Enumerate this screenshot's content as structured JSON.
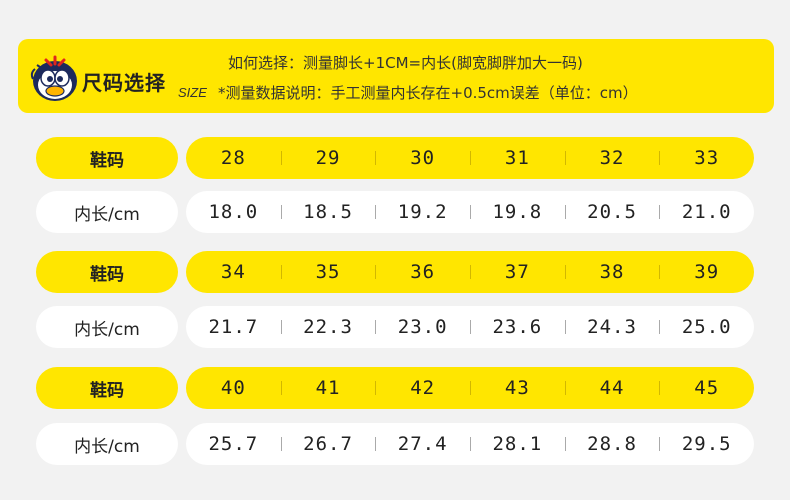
{
  "header": {
    "title": "尺码选择",
    "size_word": "SIZE",
    "line1": "如何选择：测量脚长+1CM=内长(脚宽脚胖加大一码)",
    "line2": "*测量数据说明：手工测量内长存在+0.5cm误差（单位：cm）",
    "mascot_icon": "cartoon-bird-mascot-icon"
  },
  "colors": {
    "accent": "#ffe600",
    "background": "#f2f2f2",
    "text": "#222222"
  },
  "groups": [
    {
      "size_label": "鞋码",
      "length_label": "内长/cm",
      "sizes": [
        "28",
        "29",
        "30",
        "31",
        "32",
        "33"
      ],
      "lengths": [
        "18.0",
        "18.5",
        "19.2",
        "19.8",
        "20.5",
        "21.0"
      ]
    },
    {
      "size_label": "鞋码",
      "length_label": "内长/cm",
      "sizes": [
        "34",
        "35",
        "36",
        "37",
        "38",
        "39"
      ],
      "lengths": [
        "21.7",
        "22.3",
        "23.0",
        "23.6",
        "24.3",
        "25.0"
      ]
    },
    {
      "size_label": "鞋码",
      "length_label": "内长/cm",
      "sizes": [
        "40",
        "41",
        "42",
        "43",
        "44",
        "45"
      ],
      "lengths": [
        "25.7",
        "26.7",
        "27.4",
        "28.1",
        "28.8",
        "29.5"
      ]
    }
  ]
}
